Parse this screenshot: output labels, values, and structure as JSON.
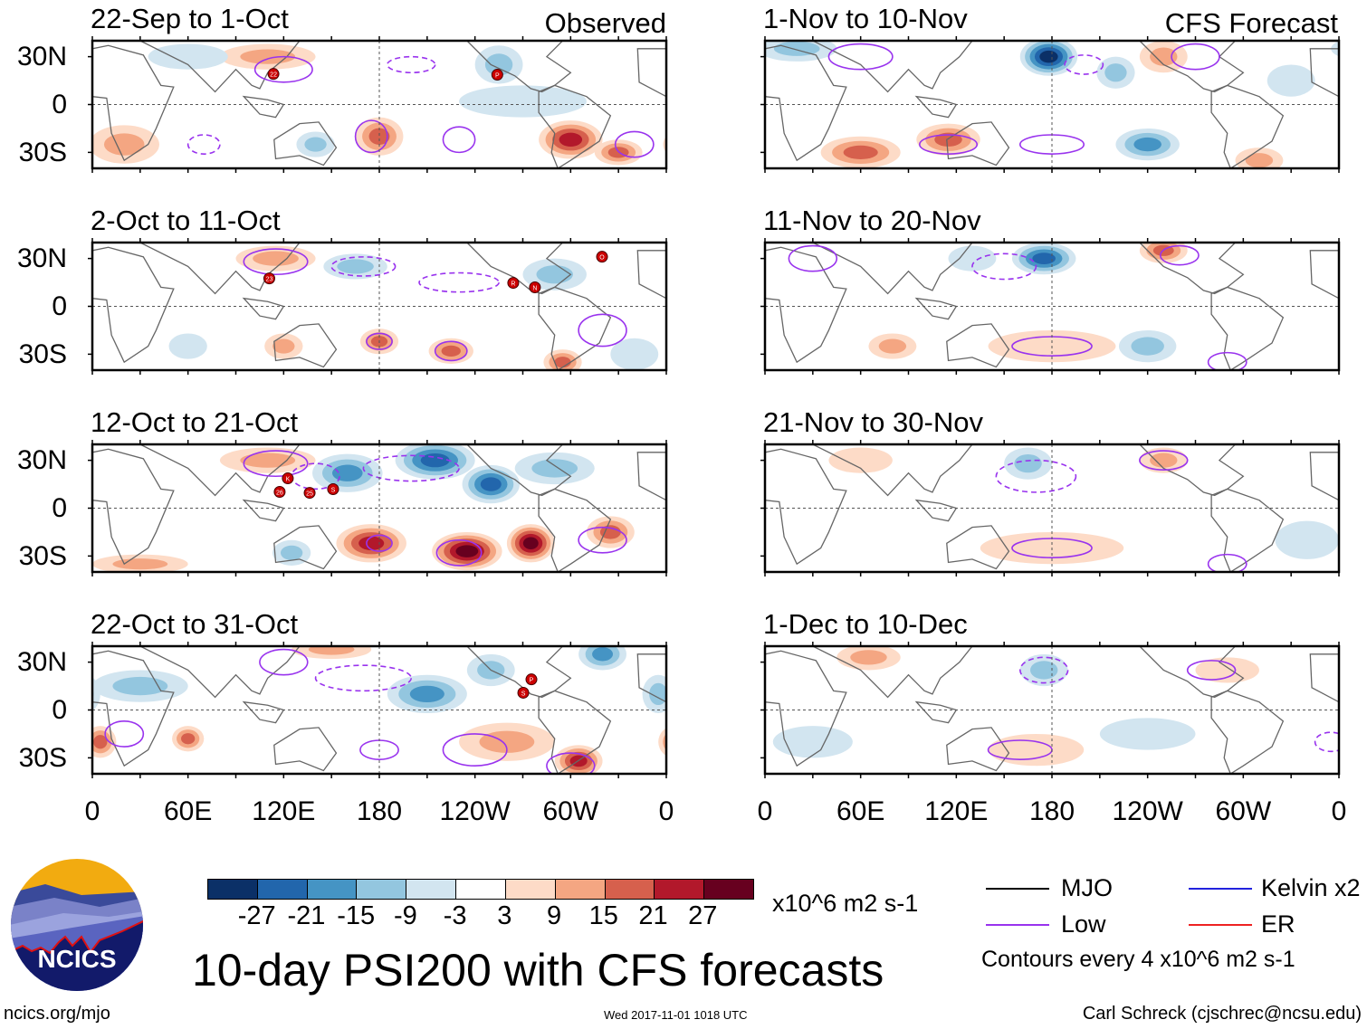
{
  "header": {
    "observed_label": "Observed",
    "forecast_label": "CFS Forecast"
  },
  "axes": {
    "lat_labels": [
      "30N",
      "0",
      "30S"
    ],
    "lon_labels": [
      "0",
      "60E",
      "120E",
      "180",
      "120W",
      "60W",
      "0"
    ]
  },
  "colorbar": {
    "ticks": [
      "-27",
      "-21",
      "-15",
      "-9",
      "-3",
      "3",
      "9",
      "15",
      "21",
      "27"
    ],
    "colors": [
      "#0b3067",
      "#2266ac",
      "#4594c4",
      "#93c6df",
      "#d2e5f0",
      "#ffffff",
      "#fddbc7",
      "#f4a682",
      "#d6604d",
      "#b2182b",
      "#67001f"
    ],
    "units": "x10^6 m2 s-1"
  },
  "title": "10-day PSI200 with CFS forecasts",
  "legend": {
    "items": [
      {
        "label": "MJO",
        "color": "#000000"
      },
      {
        "label": "Kelvin x2",
        "color": "#2222dd"
      },
      {
        "label": "Low",
        "color": "#9933ee"
      },
      {
        "label": "ER",
        "color": "#ee2222"
      }
    ],
    "contour_note": "Contours every 4 x10^6 m2 s-1"
  },
  "footer": {
    "url": "ncics.org/mjo",
    "timestamp": "Wed 2017-11-01 1018 UTC",
    "credit": "Carl Schreck (cjschrec@ncsu.edu)",
    "logo_text": "NCICS"
  },
  "chart_data": {
    "type": "heatmap",
    "variable": "PSI200 anomaly",
    "lon_range": [
      0,
      360
    ],
    "lat_range": [
      -40,
      40
    ],
    "panels": [
      {
        "title": "22-Sep to 1-Oct",
        "kind": "Observed",
        "anomalies": [
          [
            180,
            -20,
            15,
            12,
            15
          ],
          [
            300,
            -22,
            20,
            12,
            21
          ],
          [
            20,
            -25,
            22,
            12,
            9
          ],
          [
            140,
            -25,
            12,
            8,
            -9
          ],
          [
            255,
            25,
            15,
            12,
            -9
          ],
          [
            110,
            30,
            30,
            8,
            9
          ],
          [
            270,
            2,
            40,
            10,
            -3
          ],
          [
            330,
            -30,
            15,
            8,
            15
          ],
          [
            60,
            30,
            25,
            8,
            -3
          ]
        ],
        "contours": [
          [
            120,
            22,
            18,
            8,
            0
          ],
          [
            175,
            -20,
            10,
            10,
            0
          ],
          [
            230,
            -22,
            10,
            8,
            0
          ],
          [
            70,
            -25,
            10,
            6,
            1
          ],
          [
            200,
            25,
            15,
            5,
            1
          ],
          [
            340,
            -25,
            12,
            8,
            0
          ]
        ],
        "storms": [
          [
            113.6,
            19.2,
            "22"
          ],
          [
            254,
            18.7,
            "P"
          ]
        ]
      },
      {
        "title": "2-Oct to 11-Oct",
        "kind": "Observed",
        "anomalies": [
          [
            115,
            30,
            25,
            8,
            9
          ],
          [
            120,
            -25,
            12,
            8,
            9
          ],
          [
            180,
            -22,
            12,
            8,
            15
          ],
          [
            225,
            -28,
            14,
            8,
            15
          ],
          [
            295,
            -35,
            12,
            8,
            15
          ],
          [
            165,
            25,
            20,
            8,
            -9
          ],
          [
            290,
            20,
            20,
            10,
            -9
          ],
          [
            60,
            -25,
            12,
            8,
            -3
          ],
          [
            340,
            -30,
            15,
            10,
            -3
          ]
        ],
        "contours": [
          [
            115,
            28,
            20,
            8,
            0
          ],
          [
            225,
            -28,
            10,
            6,
            0
          ],
          [
            180,
            -22,
            8,
            5,
            0
          ],
          [
            170,
            25,
            20,
            6,
            1
          ],
          [
            230,
            15,
            25,
            6,
            1
          ],
          [
            320,
            -15,
            15,
            10,
            0
          ]
        ],
        "storms": [
          [
            111,
            17.5,
            "23"
          ],
          [
            264,
            14.7,
            "R"
          ],
          [
            277.6,
            11.9,
            "N"
          ],
          [
            319.7,
            31.1,
            "O"
          ]
        ]
      },
      {
        "title": "12-Oct to 21-Oct",
        "kind": "Observed",
        "anomalies": [
          [
            160,
            22,
            22,
            12,
            -15
          ],
          [
            215,
            30,
            25,
            12,
            -21
          ],
          [
            250,
            15,
            18,
            12,
            -21
          ],
          [
            290,
            25,
            25,
            10,
            -9
          ],
          [
            175,
            -22,
            22,
            12,
            21
          ],
          [
            235,
            -27,
            22,
            12,
            27
          ],
          [
            275,
            -22,
            15,
            12,
            27
          ],
          [
            325,
            -15,
            15,
            10,
            15
          ],
          [
            110,
            30,
            30,
            8,
            9
          ],
          [
            125,
            -28,
            12,
            8,
            -9
          ],
          [
            30,
            -35,
            30,
            6,
            9
          ]
        ],
        "contours": [
          [
            115,
            28,
            20,
            8,
            0
          ],
          [
            230,
            -28,
            14,
            8,
            0
          ],
          [
            180,
            -22,
            8,
            5,
            0
          ],
          [
            200,
            25,
            30,
            8,
            1
          ],
          [
            140,
            20,
            15,
            8,
            1
          ],
          [
            320,
            -20,
            15,
            8,
            0
          ]
        ],
        "storms": [
          [
            122.6,
            18.7,
            "K"
          ],
          [
            117.5,
            10.2,
            "26"
          ],
          [
            136.3,
            9.6,
            "25"
          ],
          [
            151,
            11.9,
            "S"
          ]
        ]
      },
      {
        "title": "22-Oct to 31-Oct",
        "kind": "Observed",
        "anomalies": [
          [
            210,
            10,
            25,
            12,
            -15
          ],
          [
            320,
            35,
            15,
            10,
            -15
          ],
          [
            355,
            10,
            10,
            12,
            -9
          ],
          [
            305,
            -32,
            15,
            10,
            21
          ],
          [
            60,
            -18,
            10,
            8,
            15
          ],
          [
            5,
            -20,
            10,
            10,
            15
          ],
          [
            150,
            38,
            25,
            6,
            9
          ],
          [
            30,
            15,
            30,
            10,
            -9
          ],
          [
            250,
            25,
            15,
            10,
            -9
          ],
          [
            260,
            -20,
            30,
            12,
            9
          ]
        ],
        "contours": [
          [
            120,
            30,
            15,
            8,
            0
          ],
          [
            180,
            -25,
            12,
            6,
            0
          ],
          [
            240,
            -25,
            20,
            10,
            0
          ],
          [
            300,
            -35,
            15,
            8,
            0
          ],
          [
            170,
            20,
            30,
            8,
            1
          ],
          [
            20,
            -15,
            12,
            8,
            0
          ]
        ],
        "storms": [
          [
            275.4,
            19.2,
            "P"
          ],
          [
            270.3,
            10.8,
            "S"
          ]
        ]
      },
      {
        "title": "1-Nov to 10-Nov",
        "kind": "CFS Forecast",
        "anomalies": [
          [
            178,
            30,
            18,
            12,
            -27
          ],
          [
            220,
            20,
            12,
            10,
            -9
          ],
          [
            115,
            -22,
            20,
            10,
            15
          ],
          [
            60,
            -30,
            25,
            10,
            15
          ],
          [
            240,
            -25,
            20,
            10,
            -15
          ],
          [
            250,
            30,
            15,
            10,
            9
          ],
          [
            310,
            -35,
            15,
            8,
            9
          ],
          [
            20,
            35,
            25,
            8,
            -9
          ],
          [
            330,
            15,
            15,
            10,
            -3
          ]
        ],
        "contours": [
          [
            115,
            -25,
            18,
            6,
            0
          ],
          [
            180,
            -25,
            20,
            6,
            0
          ],
          [
            270,
            30,
            15,
            8,
            0
          ],
          [
            60,
            30,
            20,
            8,
            0
          ],
          [
            200,
            25,
            12,
            6,
            1
          ]
        ],
        "storms": []
      },
      {
        "title": "11-Nov to 20-Nov",
        "kind": "CFS Forecast",
        "anomalies": [
          [
            175,
            30,
            20,
            10,
            -21
          ],
          [
            250,
            35,
            15,
            8,
            15
          ],
          [
            80,
            -25,
            15,
            8,
            9
          ],
          [
            240,
            -25,
            18,
            10,
            -9
          ],
          [
            130,
            30,
            15,
            8,
            -3
          ],
          [
            180,
            -25,
            40,
            10,
            3
          ]
        ],
        "contours": [
          [
            180,
            -25,
            25,
            6,
            0
          ],
          [
            290,
            -35,
            12,
            6,
            0
          ],
          [
            260,
            32,
            12,
            6,
            0
          ],
          [
            150,
            25,
            20,
            8,
            1
          ],
          [
            30,
            30,
            15,
            8,
            0
          ]
        ],
        "storms": []
      },
      {
        "title": "21-Nov to 30-Nov",
        "kind": "CFS Forecast",
        "anomalies": [
          [
            165,
            28,
            15,
            10,
            -9
          ],
          [
            250,
            30,
            15,
            8,
            9
          ],
          [
            180,
            -25,
            45,
            10,
            3
          ],
          [
            340,
            -20,
            20,
            12,
            -3
          ],
          [
            60,
            30,
            20,
            8,
            3
          ]
        ],
        "contours": [
          [
            180,
            -25,
            25,
            6,
            0
          ],
          [
            290,
            -35,
            12,
            6,
            0
          ],
          [
            250,
            30,
            15,
            6,
            0
          ],
          [
            170,
            20,
            25,
            10,
            1
          ]
        ],
        "storms": []
      },
      {
        "title": "1-Dec to 10-Dec",
        "kind": "CFS Forecast",
        "anomalies": [
          [
            175,
            25,
            15,
            10,
            -9
          ],
          [
            65,
            33,
            20,
            8,
            9
          ],
          [
            170,
            -25,
            30,
            10,
            3
          ],
          [
            30,
            -20,
            25,
            10,
            -3
          ],
          [
            290,
            25,
            20,
            8,
            3
          ],
          [
            240,
            -15,
            30,
            10,
            -3
          ]
        ],
        "contours": [
          [
            160,
            -25,
            20,
            6,
            0
          ],
          [
            280,
            25,
            15,
            6,
            0
          ],
          [
            175,
            25,
            15,
            8,
            1
          ],
          [
            355,
            -20,
            10,
            6,
            1
          ]
        ],
        "storms": []
      }
    ]
  }
}
